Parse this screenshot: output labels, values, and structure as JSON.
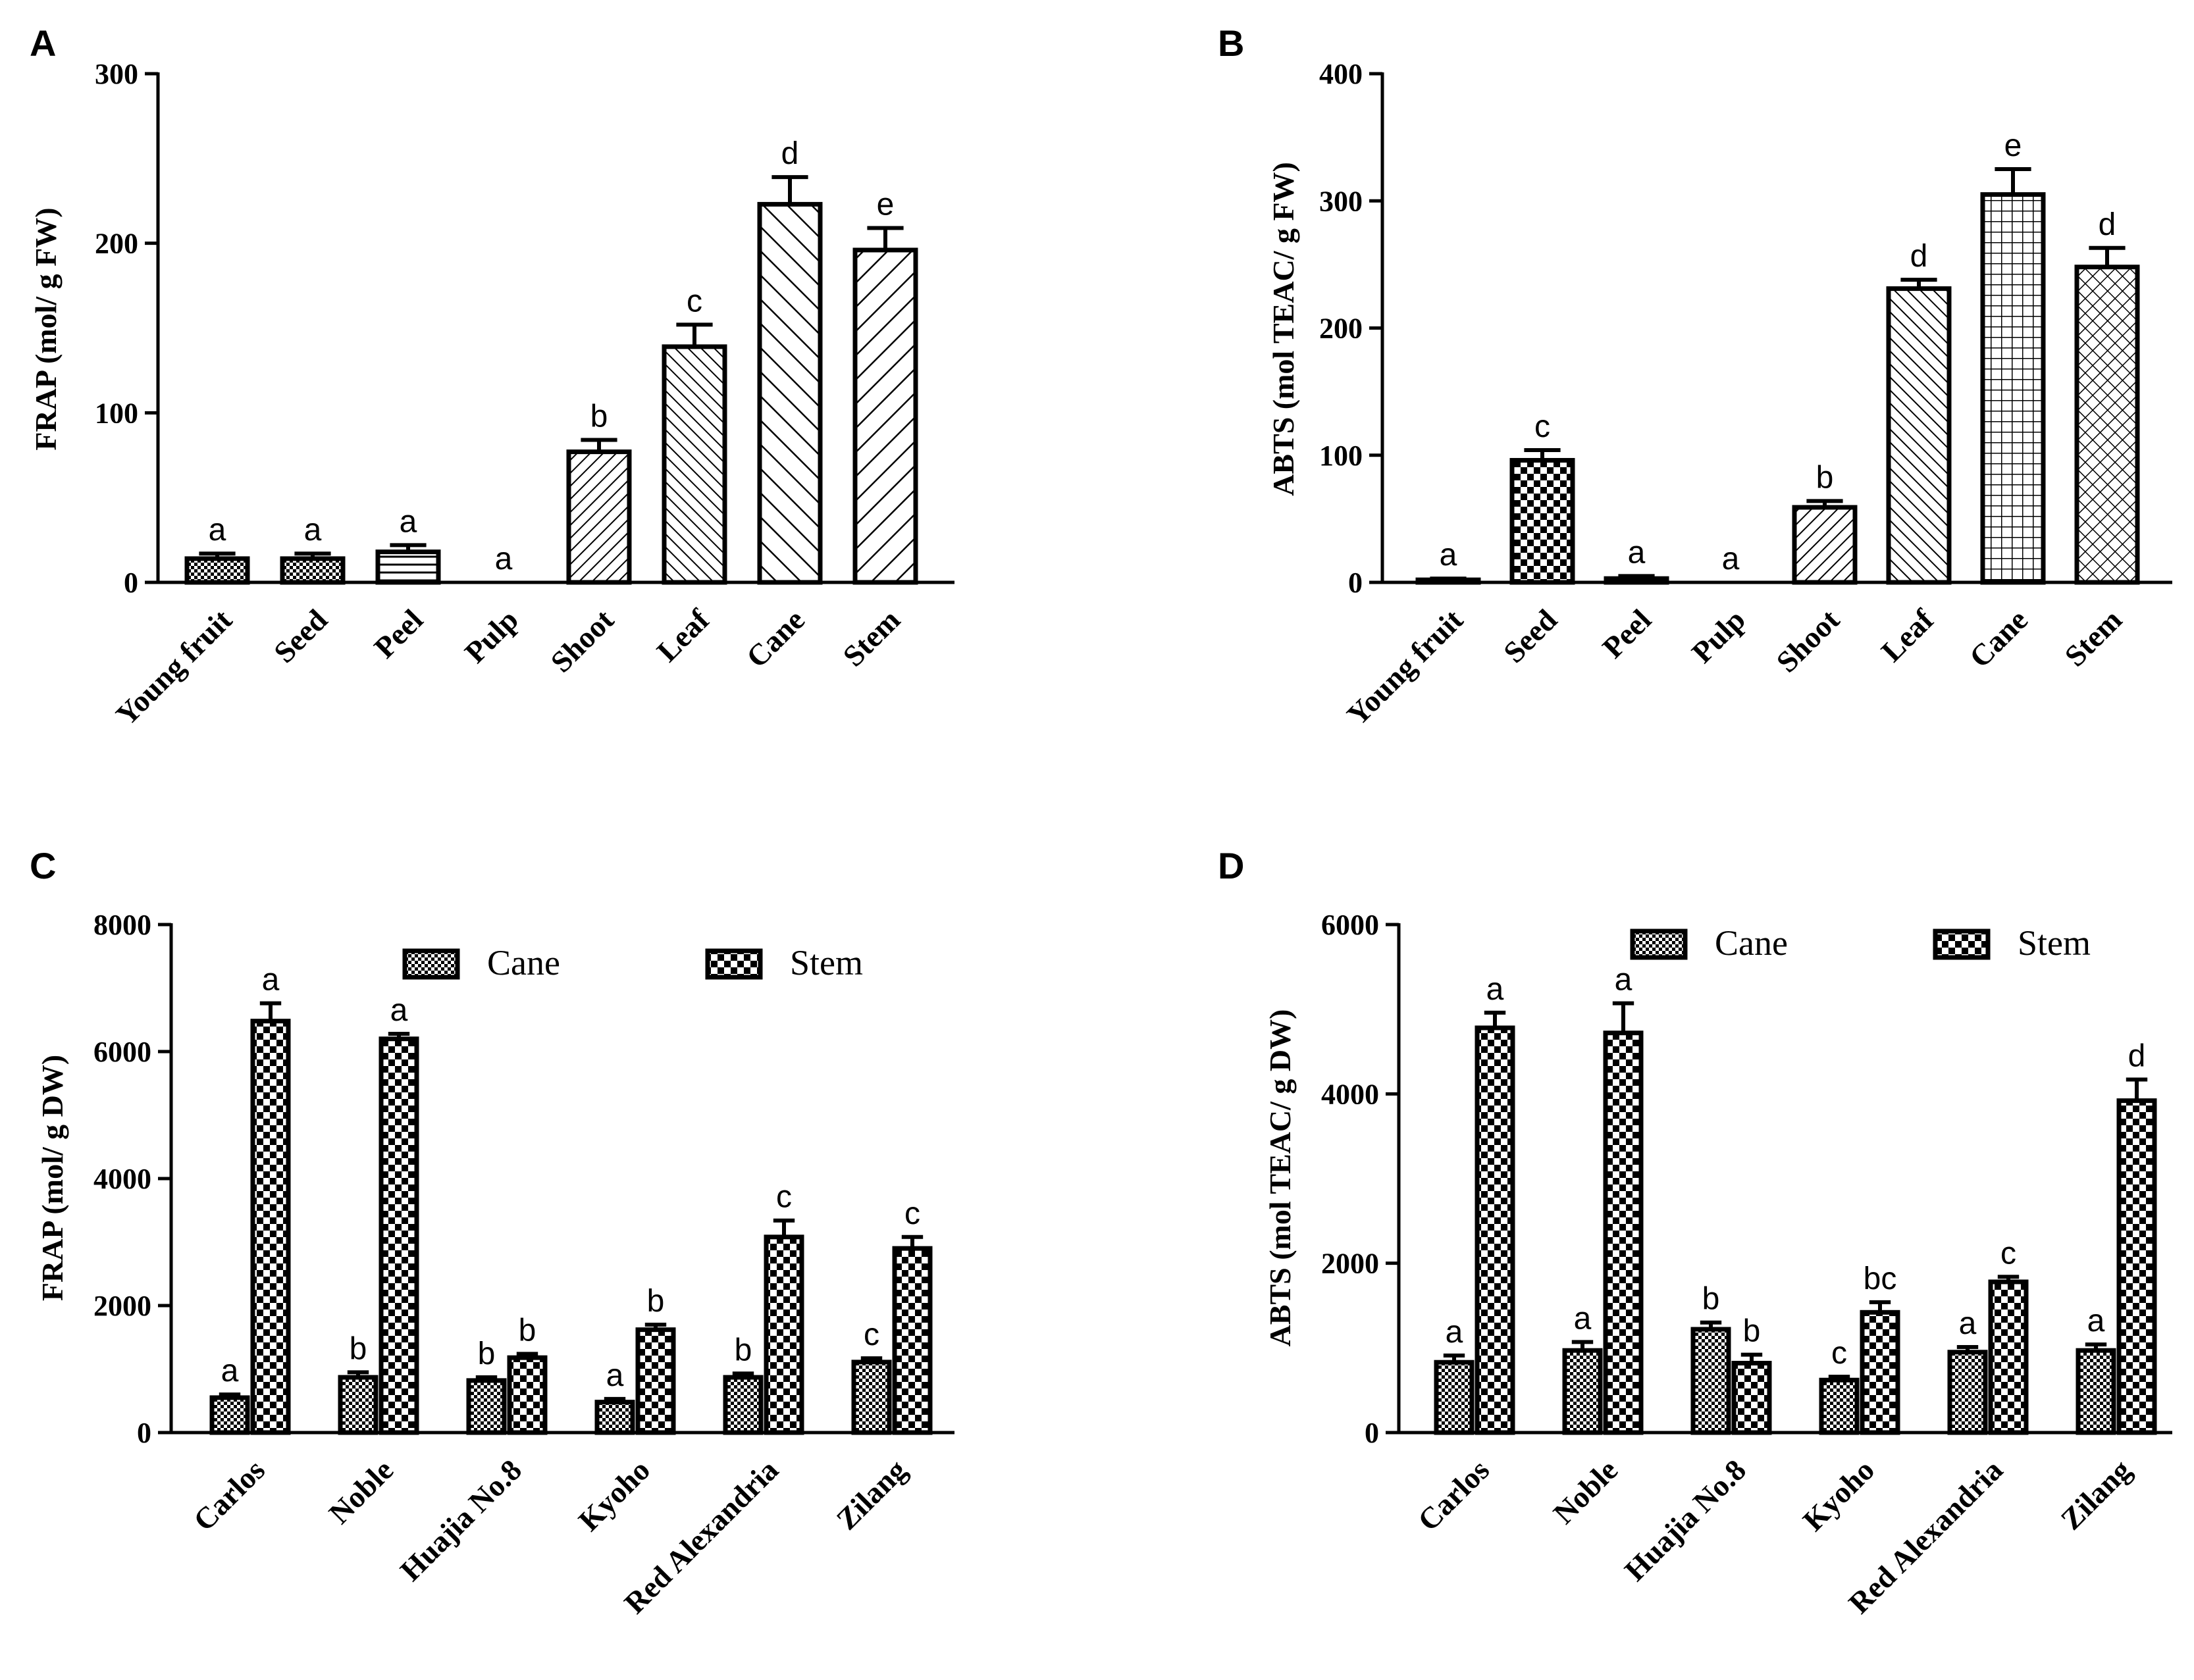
{
  "chart_data": [
    {
      "panel": "A",
      "type": "bar",
      "ylabel": "FRAP (mol/ g FW)",
      "ylim": [
        0,
        300
      ],
      "yticks": [
        0,
        100,
        200,
        300
      ],
      "categories": [
        "Young fruit",
        "Seed",
        "Peel",
        "Pulp",
        "Shoot",
        "Leaf",
        "Cane",
        "Stem"
      ],
      "series": [
        {
          "name": "FRAP",
          "values": [
            14,
            14,
            18,
            0,
            77,
            139,
            223,
            196
          ],
          "errors": [
            3,
            3,
            4,
            0,
            7,
            13,
            16,
            13
          ],
          "letters": [
            "a",
            "a",
            "a",
            "a",
            "b",
            "c",
            "d",
            "e"
          ],
          "patterns": [
            "fine-check",
            "fine-check",
            "horizontal",
            "none",
            "diag-fine",
            "diag-back-fine",
            "diag-back-wide",
            "diag-wide"
          ]
        }
      ]
    },
    {
      "panel": "B",
      "type": "bar",
      "ylabel": "ABTS (mol TEAC/ g FW)",
      "ylim": [
        0,
        400
      ],
      "yticks": [
        0,
        100,
        200,
        300,
        400
      ],
      "categories": [
        "Young fruit",
        "Seed",
        "Peel",
        "Pulp",
        "Shoot",
        "Leaf",
        "Cane",
        "Stem"
      ],
      "series": [
        {
          "name": "ABTS",
          "values": [
            2,
            96,
            3,
            0,
            59,
            231,
            305,
            248
          ],
          "errors": [
            1,
            8,
            2,
            0,
            5,
            7,
            20,
            15
          ],
          "letters": [
            "a",
            "c",
            "a",
            "a",
            "b",
            "d",
            "e",
            "d"
          ],
          "patterns": [
            "fine-check",
            "checker",
            "fine-check",
            "none",
            "diag-fine",
            "diag-back-fine",
            "grid",
            "crosshatch"
          ]
        }
      ]
    },
    {
      "panel": "C",
      "type": "bar",
      "ylabel": "FRAP (mol/ g DW)",
      "ylim": [
        0,
        8000
      ],
      "yticks": [
        0,
        2000,
        4000,
        6000,
        8000
      ],
      "categories": [
        "Carlos",
        "Noble",
        "Huajia No.8",
        "Kyoho",
        "Red Alexandria",
        "Zilang"
      ],
      "legend": [
        "Cane",
        "Stem"
      ],
      "series": [
        {
          "name": "Cane",
          "values": [
            550,
            870,
            820,
            480,
            870,
            1110
          ],
          "errors": [
            50,
            80,
            50,
            50,
            60,
            60
          ],
          "letters": [
            "a",
            "b",
            "b",
            "a",
            "b",
            "c"
          ],
          "pattern": "fine-check"
        },
        {
          "name": "Stem",
          "values": [
            6480,
            6200,
            1180,
            1620,
            3080,
            2900
          ],
          "errors": [
            280,
            80,
            60,
            80,
            260,
            180
          ],
          "letters": [
            "a",
            "a",
            "b",
            "b",
            "c",
            "c"
          ],
          "pattern": "checker"
        }
      ]
    },
    {
      "panel": "D",
      "type": "bar",
      "ylabel": "ABTS (mol TEAC/ g DW)",
      "ylim": [
        0,
        6000
      ],
      "yticks": [
        0,
        2000,
        4000,
        6000
      ],
      "categories": [
        "Carlos",
        "Noble",
        "Huajia No.8",
        "Kyoho",
        "Red Alexandria",
        "Zilang"
      ],
      "legend": [
        "Cane",
        "Stem"
      ],
      "series": [
        {
          "name": "Cane",
          "values": [
            830,
            970,
            1220,
            620,
            950,
            970
          ],
          "errors": [
            80,
            100,
            80,
            40,
            60,
            70
          ],
          "letters": [
            "a",
            "a",
            "b",
            "c",
            "a",
            "a"
          ],
          "pattern": "fine-check"
        },
        {
          "name": "Stem",
          "values": [
            4780,
            4720,
            820,
            1420,
            1780,
            3920
          ],
          "errors": [
            180,
            350,
            100,
            120,
            60,
            250
          ],
          "letters": [
            "a",
            "a",
            "b",
            "bc",
            "c",
            "d"
          ],
          "pattern": "checker"
        }
      ]
    }
  ]
}
